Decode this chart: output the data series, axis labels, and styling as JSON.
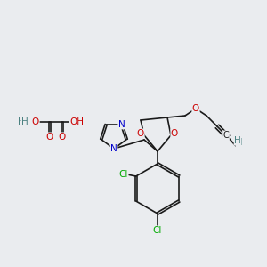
{
  "bg_color": "#eaecef",
  "bond_color": "#1a1a1a",
  "bond_width": 1.2,
  "atom_colors": {
    "O": "#cc0000",
    "N": "#0000cc",
    "Cl": "#00aa00",
    "C": "#1a1a1a",
    "H": "#4a8080"
  },
  "font_size": 7.5
}
